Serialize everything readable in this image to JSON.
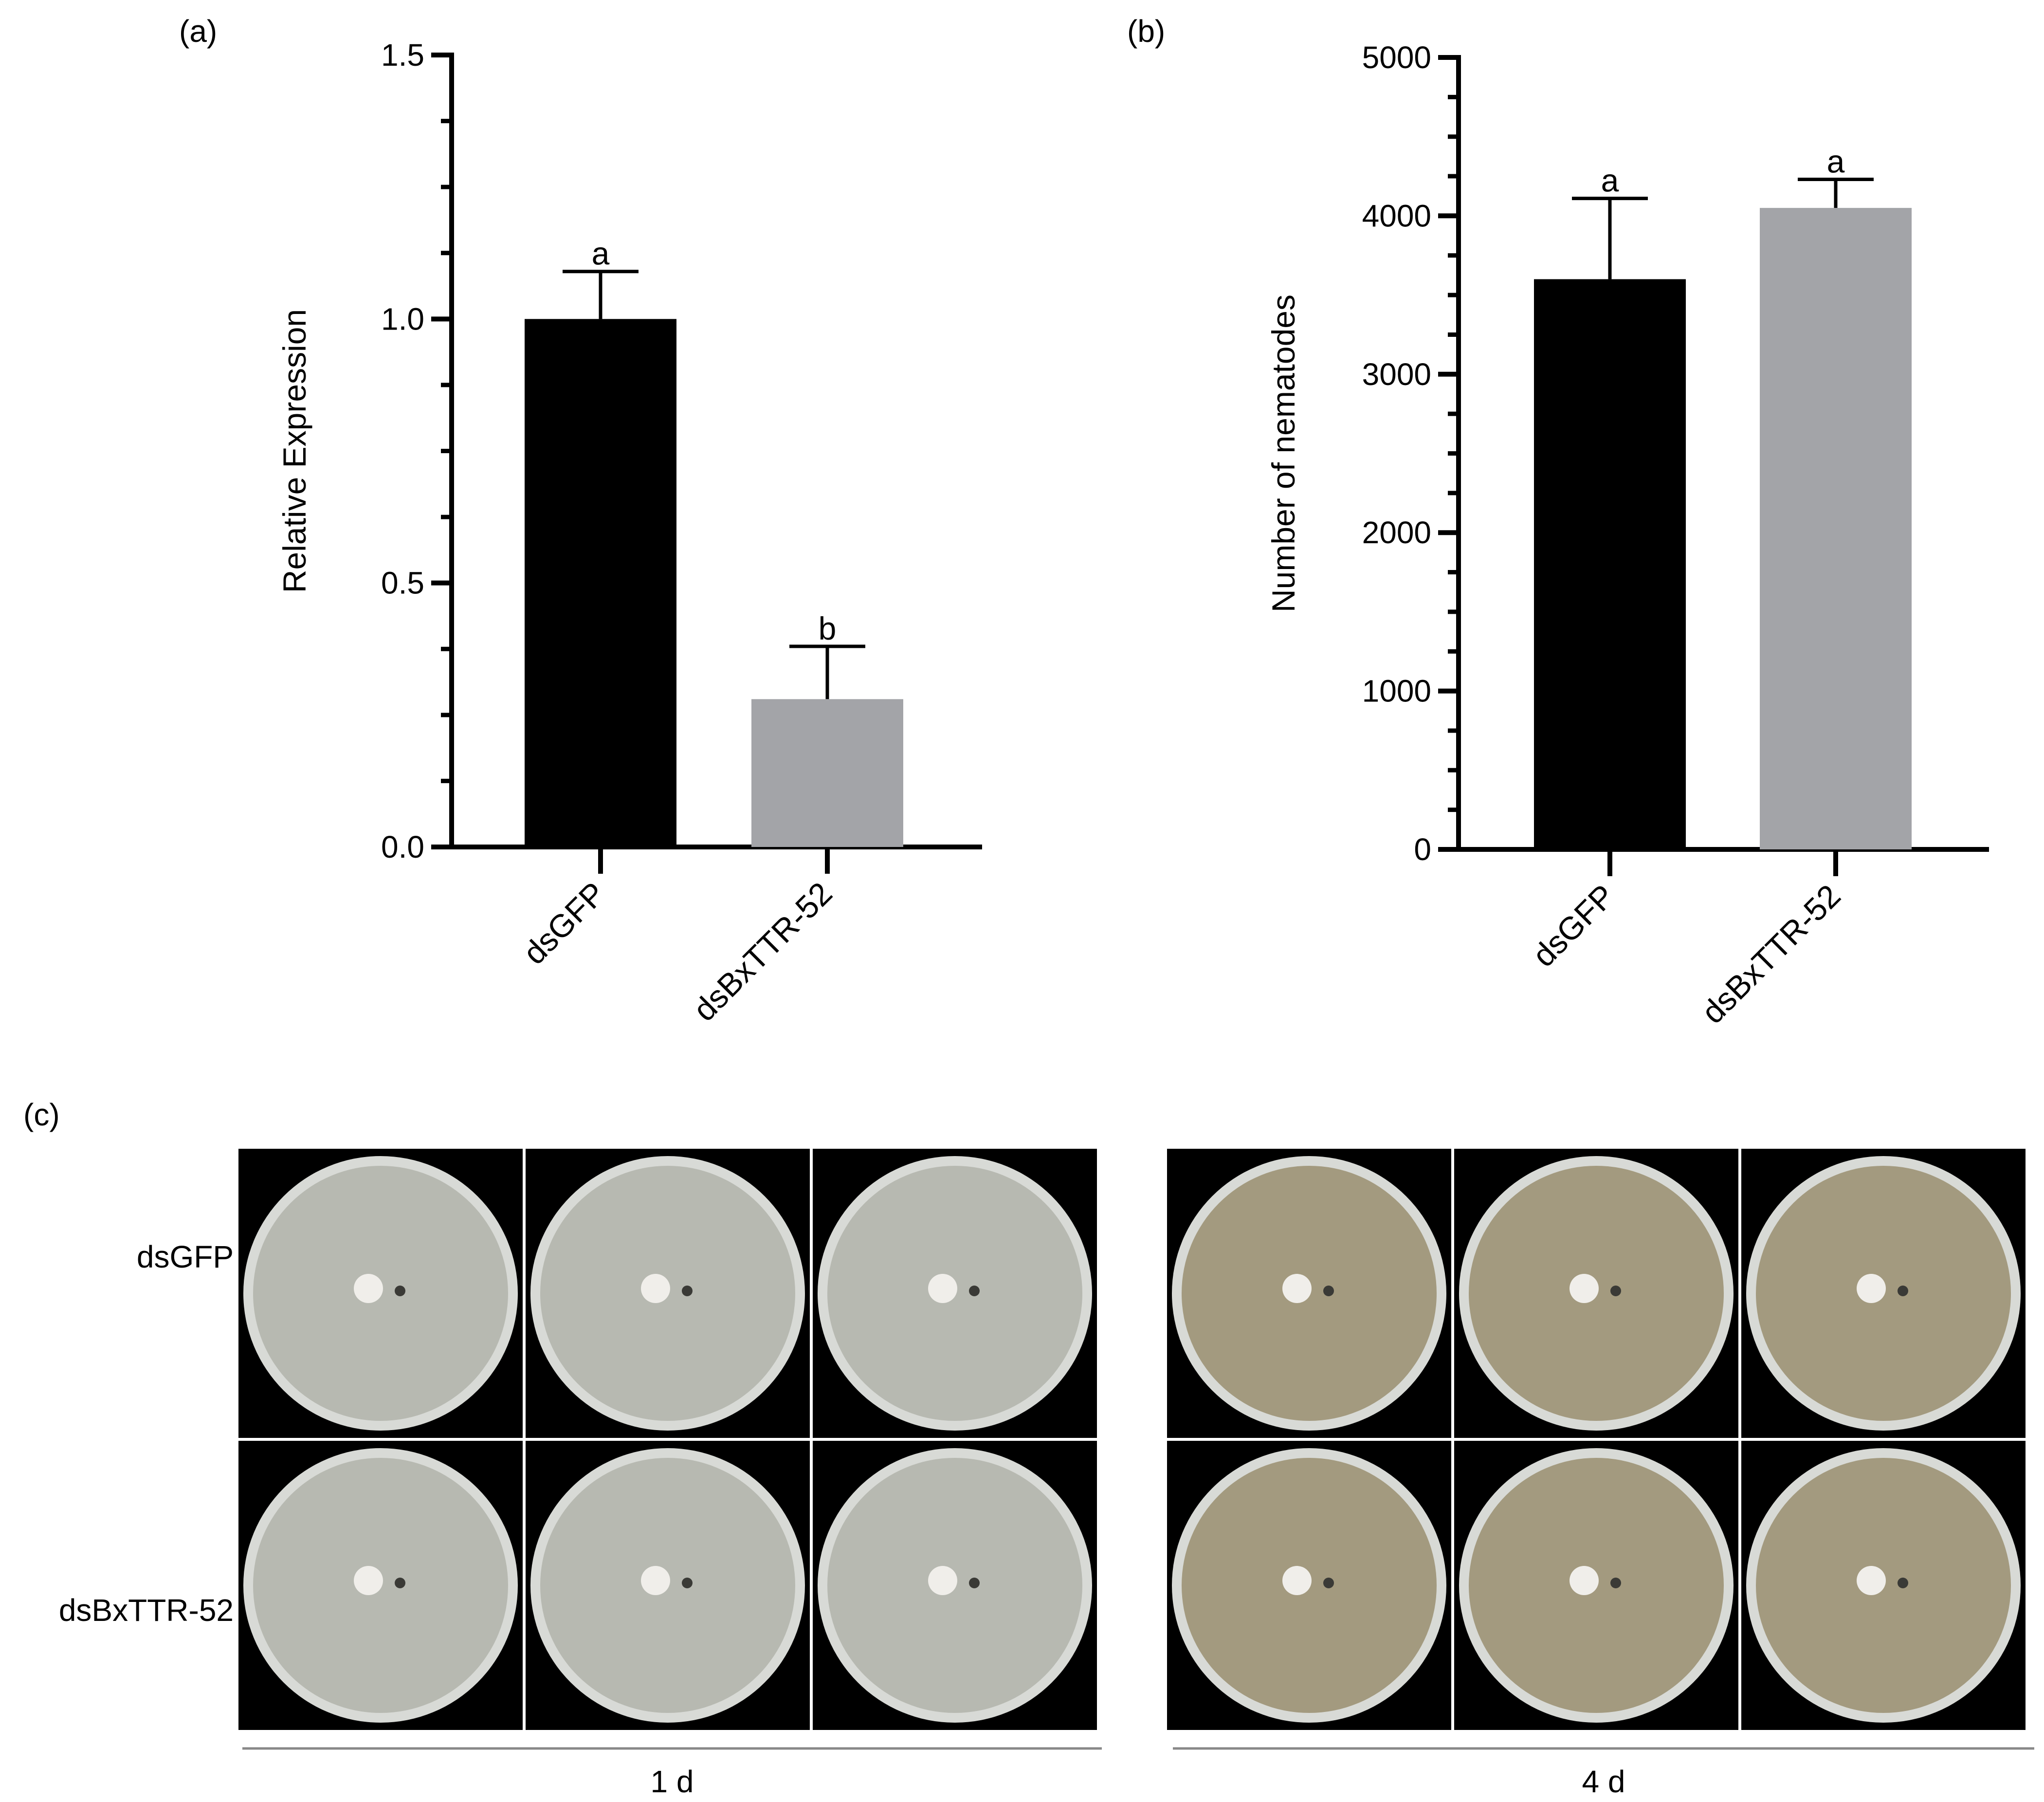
{
  "panel_labels": {
    "a": "(a)",
    "b": "(b)",
    "c": "(c)"
  },
  "colors": {
    "bar_dsGFP": "#000000",
    "bar_dsBxTTR52": "#a3a4a8",
    "axis": "#000000",
    "photo_bg": "#000000",
    "divider": "#888888"
  },
  "chart_data": [
    {
      "type": "bar",
      "categories": [
        "dsGFP",
        "dsBxTTR-52"
      ],
      "values": [
        1.0,
        0.28
      ],
      "errors": [
        0.09,
        0.1
      ],
      "significance": [
        "a",
        "b"
      ],
      "ylabel": "Relative Expression",
      "xlabel": "",
      "ylim": [
        0,
        1.5
      ],
      "yticks": [
        0,
        0.5,
        1.0,
        1.5
      ],
      "ytick_labels": [
        "0.0",
        "0.5",
        "1.0",
        "1.5"
      ],
      "grid": false
    },
    {
      "type": "bar",
      "categories": [
        "dsGFP",
        "dsBxTTR-52"
      ],
      "values": [
        3600,
        4050
      ],
      "errors": [
        510,
        180
      ],
      "significance": [
        "a",
        "a"
      ],
      "ylabel": "Number of nematodes",
      "xlabel": "",
      "ylim": [
        0,
        5000
      ],
      "yticks": [
        0,
        1000,
        2000,
        3000,
        4000,
        5000
      ],
      "ytick_labels": [
        "0",
        "1000",
        "2000",
        "3000",
        "4000",
        "5000"
      ],
      "grid": false
    }
  ],
  "photos": {
    "row_labels": [
      "dsGFP",
      "dsBxTTR-52"
    ],
    "group_labels": [
      "1 d",
      "4 d"
    ],
    "plates_per_group": 3,
    "plate_1d_color": "#b7b9b1",
    "plate_4d_color": "#a39a7f"
  }
}
